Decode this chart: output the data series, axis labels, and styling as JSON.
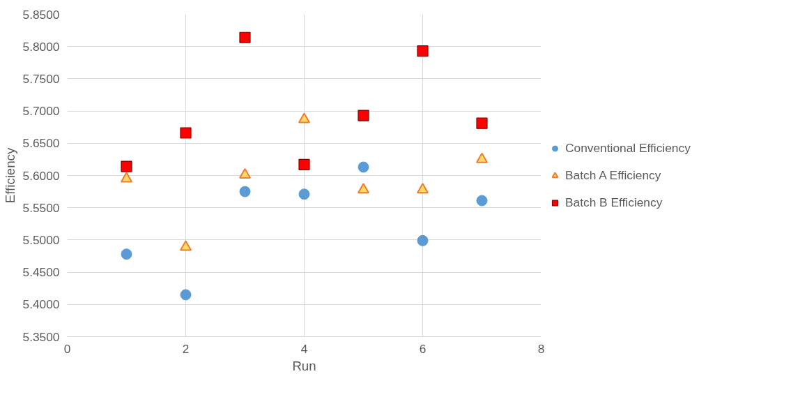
{
  "chart_data": {
    "type": "scatter",
    "xlabel": "Run",
    "ylabel": "Efficiency",
    "x": [
      1,
      2,
      3,
      4,
      5,
      6,
      7
    ],
    "series": [
      {
        "name": "Conventional Efficiency",
        "color": "#5b9bd5",
        "marker": "circle",
        "values": [
          5.478,
          5.415,
          5.575,
          5.571,
          5.613,
          5.499,
          5.561
        ]
      },
      {
        "name": "Batch A Efficiency",
        "color": "#ed7d31",
        "marker": "triangle",
        "values": [
          5.595,
          5.489,
          5.601,
          5.687,
          5.578,
          5.578,
          5.625
        ]
      },
      {
        "name": "Batch B Efficiency",
        "color": "#ff0000",
        "marker": "square",
        "values": [
          5.614,
          5.666,
          5.814,
          5.617,
          5.693,
          5.793,
          5.681
        ]
      }
    ],
    "xlim": [
      0,
      8
    ],
    "xticks": [
      0,
      2,
      4,
      6,
      8
    ],
    "ylim": [
      5.35,
      5.85
    ],
    "yticks": [
      {
        "value": 5.35,
        "label": "5.3500"
      },
      {
        "value": 5.4,
        "label": "5.4000"
      },
      {
        "value": 5.45,
        "label": "5.4500"
      },
      {
        "value": 5.5,
        "label": "5.5000"
      },
      {
        "value": 5.55,
        "label": "5.5500"
      },
      {
        "value": 5.6,
        "label": "5.6000"
      },
      {
        "value": 5.65,
        "label": "5.6500"
      },
      {
        "value": 5.7,
        "label": "5.7000"
      },
      {
        "value": 5.75,
        "label": "5.7500"
      },
      {
        "value": 5.8,
        "label": "5.8000"
      },
      {
        "value": 5.85,
        "label": "5.8500"
      }
    ],
    "grid": true,
    "legend": "right"
  }
}
